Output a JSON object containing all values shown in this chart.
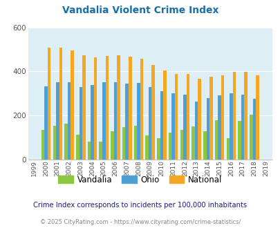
{
  "title": "Vandalia Violent Crime Index",
  "years": [
    1999,
    2000,
    2001,
    2002,
    2003,
    2004,
    2005,
    2006,
    2007,
    2008,
    2009,
    2010,
    2011,
    2012,
    2013,
    2014,
    2015,
    2016,
    2017,
    2018,
    2019
  ],
  "vandalia": [
    0,
    135,
    155,
    162,
    112,
    80,
    80,
    130,
    147,
    153,
    110,
    97,
    122,
    135,
    150,
    127,
    178,
    97,
    175,
    205,
    0
  ],
  "ohio": [
    0,
    332,
    352,
    352,
    328,
    340,
    352,
    352,
    345,
    348,
    330,
    310,
    300,
    295,
    262,
    278,
    290,
    300,
    295,
    275,
    0
  ],
  "national": [
    0,
    507,
    507,
    494,
    472,
    463,
    469,
    473,
    467,
    457,
    430,
    404,
    390,
    390,
    368,
    376,
    383,
    398,
    397,
    384,
    0
  ],
  "vandalia_color": "#8dc63f",
  "ohio_color": "#4e9fd4",
  "national_color": "#f5a623",
  "bg_color": "#deeef5",
  "ylim": [
    0,
    600
  ],
  "yticks": [
    0,
    200,
    400,
    600
  ],
  "subtitle": "Crime Index corresponds to incidents per 100,000 inhabitants",
  "footer": "© 2025 CityRating.com - https://www.cityrating.com/crime-statistics/",
  "title_color": "#1a6fa8",
  "subtitle_color": "#1a1a80",
  "footer_color": "#888888",
  "footer_link_color": "#4477cc"
}
